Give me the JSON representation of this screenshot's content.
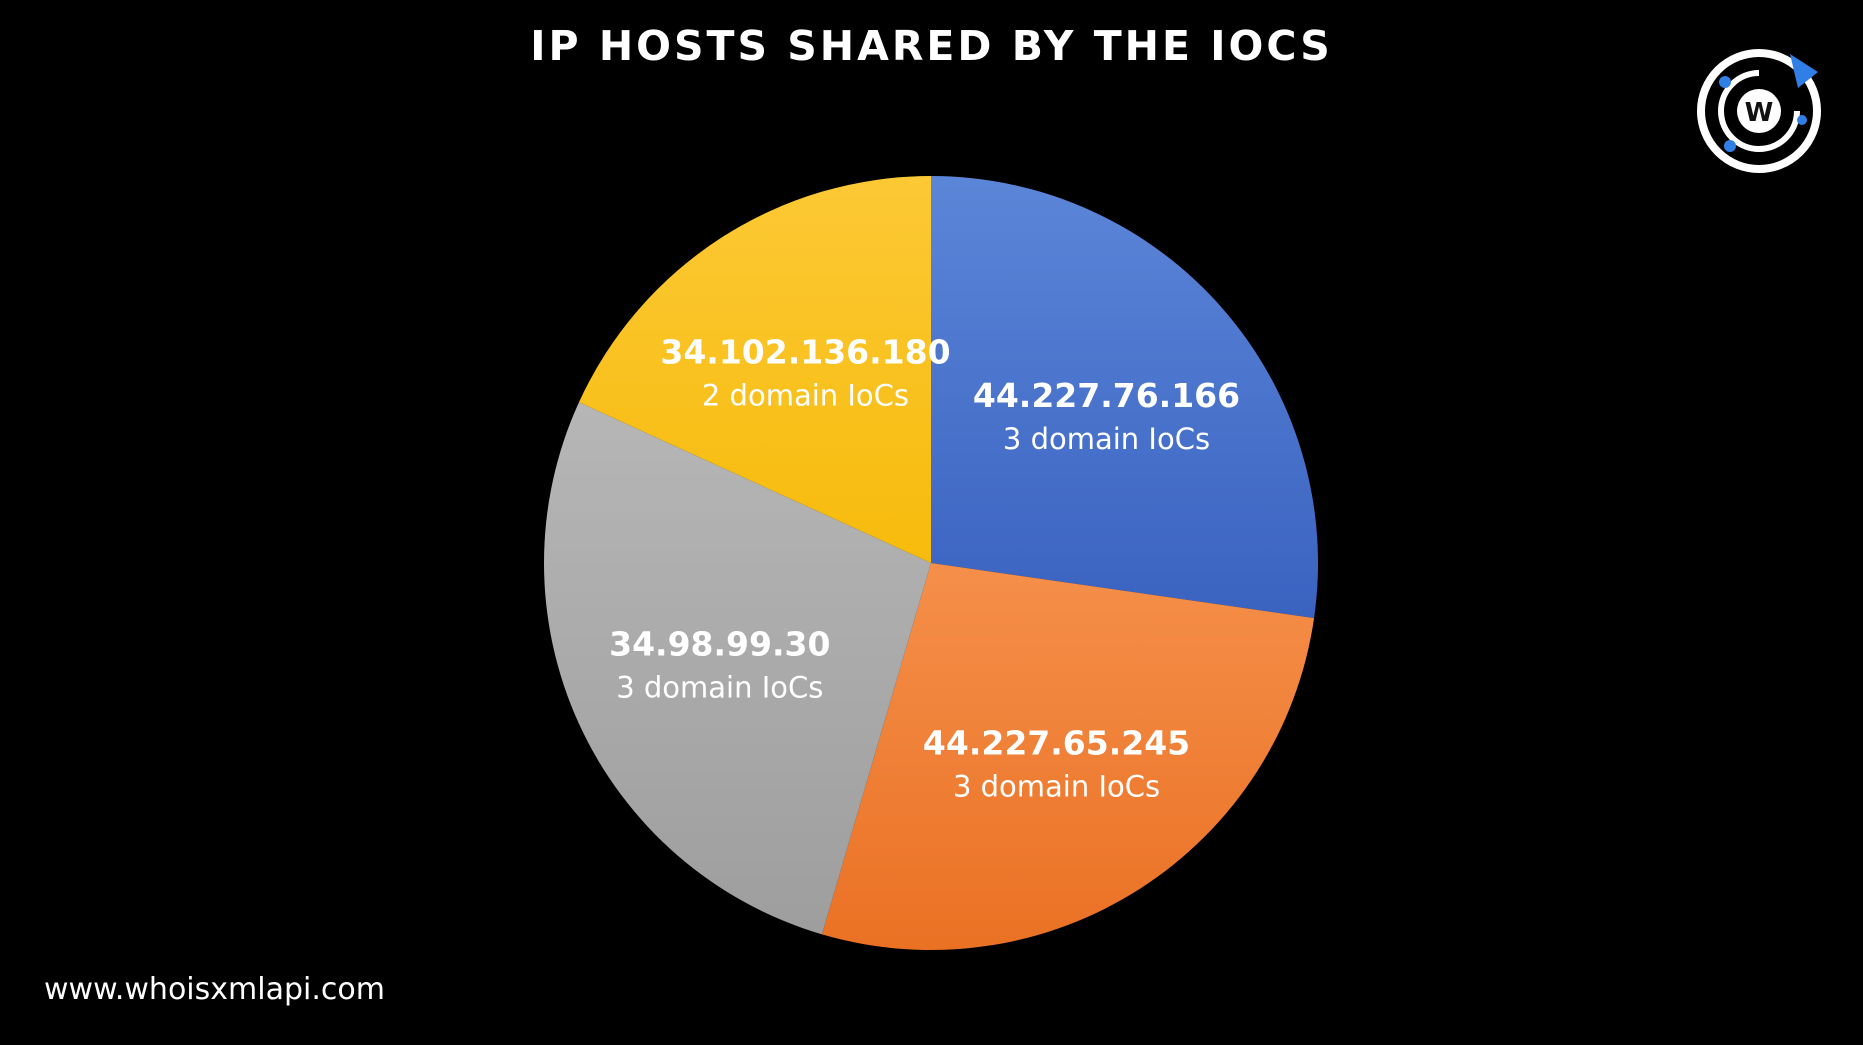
{
  "header": {
    "title": "IP HOSTS SHARED BY THE IOCS"
  },
  "footer": {
    "url": "www.whoisxmlapi.com"
  },
  "logo": {
    "icon": "whoisxmlapi-logo-icon",
    "letter": "W",
    "accent": "#2f7fe6"
  },
  "chart_data": {
    "type": "pie",
    "title": "IP HOSTS SHARED BY THE IOCS",
    "start": "12 o'clock",
    "direction": "clockwise",
    "slices": [
      {
        "label": "44.227.76.166",
        "sublabel": "3 domain IoCs",
        "value": 3,
        "color": "#4a75cc"
      },
      {
        "label": "44.227.65.245",
        "sublabel": "3 domain IoCs",
        "value": 3,
        "color": "#f07f33"
      },
      {
        "label": "34.98.99.30",
        "sublabel": "3 domain IoCs",
        "value": 3,
        "color": "#a8a8a8"
      },
      {
        "label": "34.102.136.180",
        "sublabel": "2 domain IoCs",
        "value": 2,
        "color": "#fbc31c"
      }
    ]
  }
}
